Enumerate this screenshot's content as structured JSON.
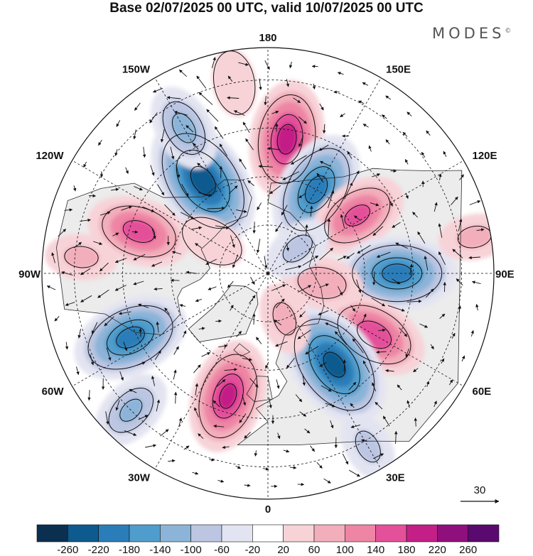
{
  "title": "Base 02/07/2025 00 UTC, valid 10/07/2025 00 UTC",
  "logo": "MODES",
  "logo_mark": "©",
  "longitude_labels": [
    "180",
    "150E",
    "120E",
    "90E",
    "60E",
    "30E",
    "0",
    "30W",
    "60W",
    "90W",
    "120W",
    "150W"
  ],
  "vector_reference": "30",
  "colorbar": {
    "ticks": [
      "-260",
      "-220",
      "-180",
      "-140",
      "-100",
      "-60",
      "-20",
      "20",
      "60",
      "100",
      "140",
      "180",
      "220",
      "260"
    ],
    "colors": [
      "#0b2f4f",
      "#0d5a8e",
      "#2a7db8",
      "#4f9dcc",
      "#8bb4d8",
      "#bcc6e2",
      "#e3e4f1",
      "#ffffff",
      "#f7d3d8",
      "#f2aebb",
      "#ee85a4",
      "#e4509a",
      "#c41f87",
      "#8f0f7d",
      "#5a0a6e"
    ]
  },
  "colors": {
    "coast": "#2b2b2b",
    "grid": "#111111",
    "land_shade": "#ececec"
  },
  "anomalies": [
    {
      "lon": 172,
      "lat": 48,
      "value": 200
    },
    {
      "lon": 150,
      "lat": 60,
      "value": -200
    },
    {
      "lon": 123,
      "lat": 57,
      "value": 150
    },
    {
      "lon": 90,
      "lat": 50,
      "value": -200
    },
    {
      "lon": 60,
      "lat": 52,
      "value": 170
    },
    {
      "lon": 36,
      "lat": 55,
      "value": -240
    },
    {
      "lon": 80,
      "lat": 73,
      "value": 90
    },
    {
      "lon": 130,
      "lat": 78,
      "value": -60
    },
    {
      "lon": -18,
      "lat": 50,
      "value": 190
    },
    {
      "lon": -65,
      "lat": 43,
      "value": -200
    },
    {
      "lon": -108,
      "lat": 48,
      "value": 160
    },
    {
      "lon": -145,
      "lat": 55,
      "value": -250
    },
    {
      "lon": -150,
      "lat": 38,
      "value": -110
    },
    {
      "lon": -45,
      "lat": 30,
      "value": -100
    },
    {
      "lon": 100,
      "lat": 25,
      "value": 60
    },
    {
      "lon": -95,
      "lat": 32,
      "value": 60
    },
    {
      "lon": 30,
      "lat": 28,
      "value": -60
    },
    {
      "lon": -170,
      "lat": 30,
      "value": 50
    },
    {
      "lon": 20,
      "lat": 75,
      "value": 60
    },
    {
      "lon": -120,
      "lat": 70,
      "value": 50
    }
  ]
}
